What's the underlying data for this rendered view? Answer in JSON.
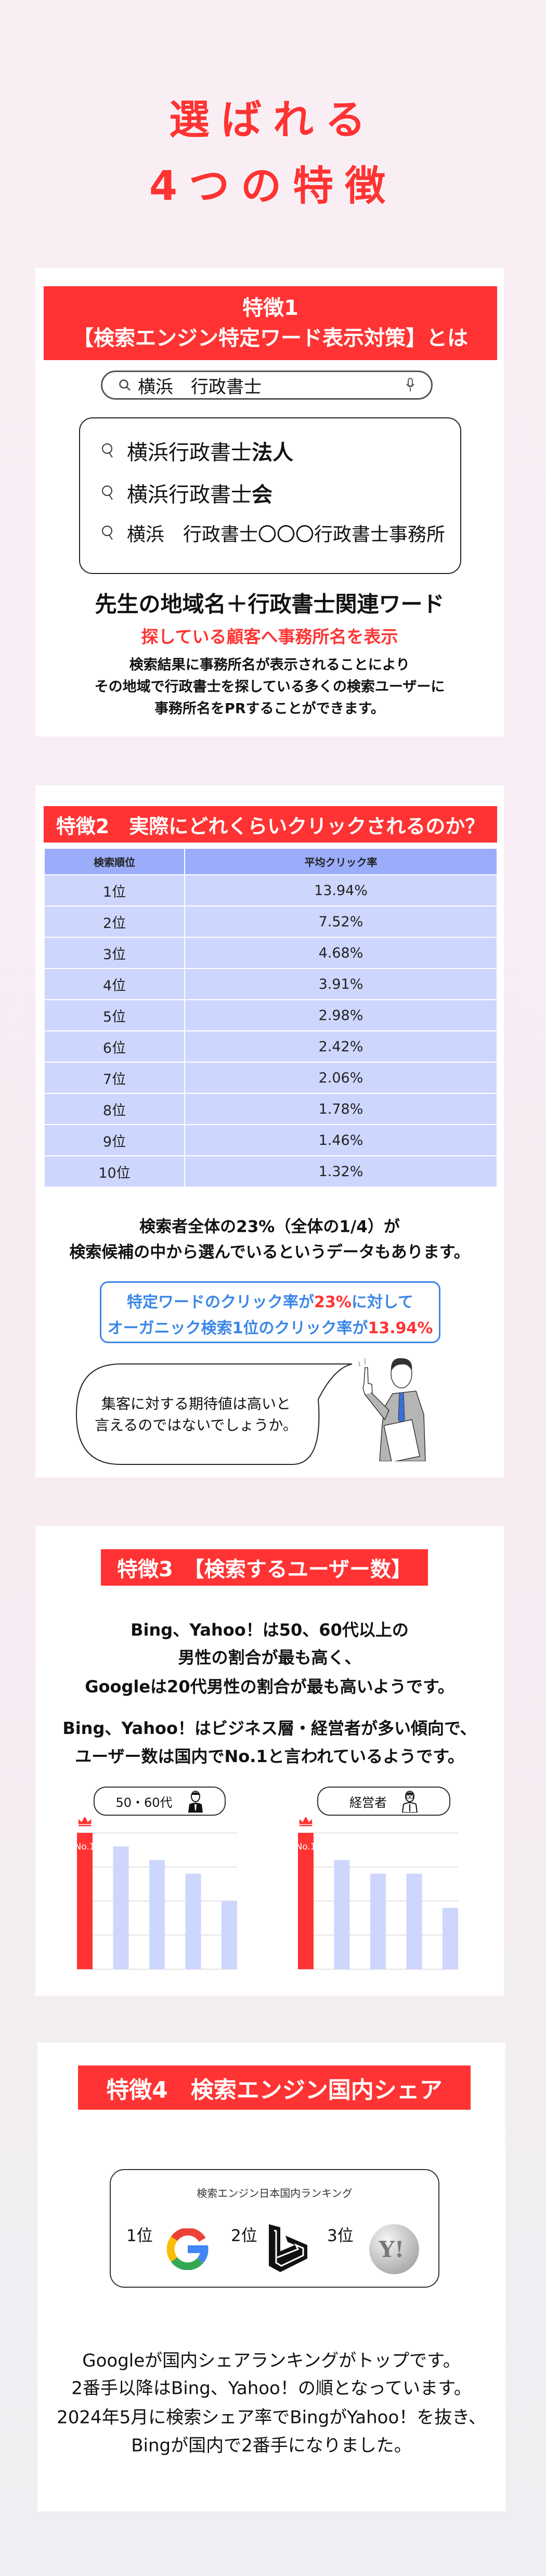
{
  "hero": {
    "line1": "選ばれる",
    "line2": "4つの特徴"
  },
  "colors": {
    "accent_red": "#ff3333",
    "table_header": "#9aacfa",
    "table_row": "#cdd6fd",
    "highlight_blue": "#3a86e8",
    "background": "#f8eef4"
  },
  "feature1": {
    "heading_line1": "特徴1",
    "heading_line2": "【検索エンジン特定ワード表示対策】とは",
    "search_value": "横浜　行政書士",
    "search_icon": "search-icon",
    "mic_icon": "microphone-icon",
    "suggestions": [
      {
        "prefix": "横浜行政書士",
        "bold": "法人"
      },
      {
        "prefix": "横浜行政書士",
        "bold": "会"
      },
      {
        "prefix": "横浜　行政書士〇〇〇行政書士事務所",
        "bold": ""
      }
    ],
    "subheading": "先生の地域名＋行政書士関連ワード",
    "red_text": "探している顧客へ事務所名を表示",
    "body": [
      "検索結果に事務所名が表示されることにより",
      "その地域で行政書士を探している多くの検索ユーザーに",
      "事務所名をPRすることができます。"
    ]
  },
  "feature2": {
    "heading": "特徴2　実際にどれくらいクリックされるのか？",
    "table": {
      "headers": [
        "検索順位",
        "平均クリック率"
      ],
      "rows": [
        [
          "1位",
          "13.94%"
        ],
        [
          "2位",
          "7.52%"
        ],
        [
          "3位",
          "4.68%"
        ],
        [
          "4位",
          "3.91%"
        ],
        [
          "5位",
          "2.98%"
        ],
        [
          "6位",
          "2.42%"
        ],
        [
          "7位",
          "2.06%"
        ],
        [
          "8位",
          "1.78%"
        ],
        [
          "9位",
          "1.46%"
        ],
        [
          "10位",
          "1.32%"
        ]
      ]
    },
    "text": [
      "検索者全体の23%（全体の1/4）が",
      "検索候補の中から選んでいるというデータもあります。"
    ],
    "highlight": {
      "line1_a": "特定ワードのクリック率が",
      "line1_b": "23%",
      "line1_c": "に対して",
      "line2_a": "オーガニック検索1位のクリック率が",
      "line2_b": "13.94%"
    },
    "bubble": [
      "集客に対する期待値は高いと",
      "言えるのではないでしょうか。"
    ]
  },
  "feature3": {
    "heading": "特徴3　【検索するユーザー数】",
    "text1": [
      "Bing、Yahoo！は50、60代以上の",
      "男性の割合が最も高く、",
      "Googleは20代男性の割合が最も高いようです。"
    ],
    "text2": [
      "Bing、Yahoo！はビジネス層・経営者が多い傾向で、",
      "ユーザー数は国内でNo.1と言われているようです。"
    ],
    "charts": [
      {
        "label": "50・60代",
        "icon": "senior-man-icon",
        "top_label": "No.1",
        "values": [
          100,
          90,
          80,
          70,
          50
        ]
      },
      {
        "label": "経営者",
        "icon": "executive-icon",
        "top_label": "No.1",
        "values": [
          100,
          80,
          70,
          70,
          45
        ]
      }
    ]
  },
  "chart_data": [
    {
      "type": "bar",
      "title": "50・60代",
      "values": [
        100,
        90,
        80,
        70,
        50
      ],
      "grid": true,
      "highlight": "No.1"
    },
    {
      "type": "bar",
      "title": "経営者",
      "values": [
        100,
        80,
        70,
        70,
        45
      ],
      "grid": true,
      "highlight": "No.1"
    }
  ],
  "feature4": {
    "heading": "特徴4　検索エンジン国内シェア",
    "ranking_title": "検索エンジン日本国内ランキング",
    "ranks": [
      {
        "label": "1位",
        "logo": "google-logo-icon"
      },
      {
        "label": "2位",
        "logo": "bing-logo-icon"
      },
      {
        "label": "3位",
        "logo": "yahoo-logo-icon"
      }
    ],
    "body": [
      "Googleが国内シェアランキングがトップです。",
      "2番手以降はBing、Yahoo！の順となっています。",
      "2024年5月に検索シェア率でBingがYahoo！を抜き、",
      "Bingが国内で2番手になりました。"
    ]
  }
}
